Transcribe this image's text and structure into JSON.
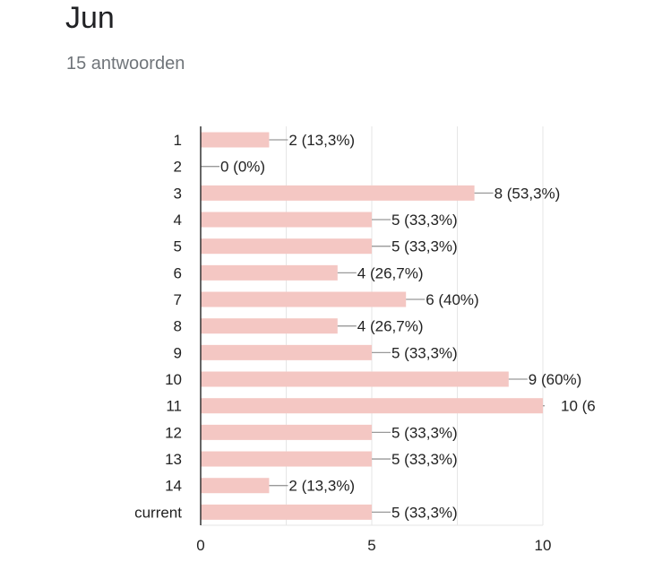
{
  "header": {
    "title": "Jun",
    "responses": "15 antwoorden"
  },
  "colors": {
    "bar": "#f4c7c3",
    "axis": "#333333",
    "grid": "#e6e6e6",
    "leader": "#999999",
    "text": "#222222"
  },
  "chart_data": {
    "type": "bar",
    "orientation": "horizontal",
    "categories": [
      "1",
      "2",
      "3",
      "4",
      "5",
      "6",
      "7",
      "8",
      "9",
      "10",
      "11",
      "12",
      "13",
      "14",
      "current"
    ],
    "values": [
      2,
      0,
      8,
      5,
      5,
      4,
      6,
      4,
      5,
      9,
      10,
      5,
      5,
      2,
      5
    ],
    "data_labels": [
      "2 (13,3%)",
      "0 (0%)",
      "8 (53,3%)",
      "5 (33,3%)",
      "5 (33,3%)",
      "4 (26,7%)",
      "6 (40%)",
      "4 (26,7%)",
      "5 (33,3%)",
      "9 (60%)",
      "10 (6",
      "5 (33,3%)",
      "5 (33,3%)",
      "2 (13,3%)",
      "5 (33,3%)"
    ],
    "xlim": [
      0,
      10
    ],
    "xticks": [
      "0",
      "5",
      "10"
    ],
    "grid": true
  }
}
